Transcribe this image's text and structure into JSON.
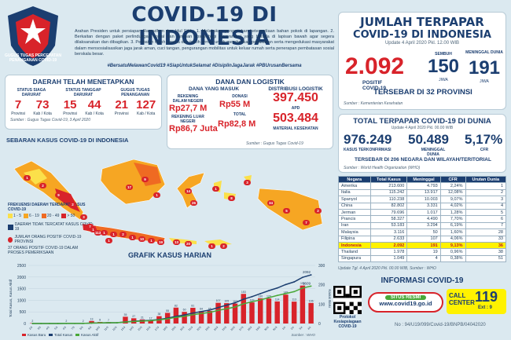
{
  "header": {
    "title": "COVID-19 DI INDONESIA",
    "logo_text": "GUGUS TUGAS PERCEPATAN PENANGANAN COVID-19",
    "intro": "Arahan Presiden untuk persiapan Ramadhan dan Idul Fitri : 1. Melakukan pengecekan ketersediaan bahan pokok di lapangan. 2. Berkaitan dengan paket perlindungan sosial dan jaminan sosial bagi masyarakat yang berada di lapisan bawah agar segera dilaksanakan dan dibagikan. 3. Pelibatan tokoh agama dan tokoh ormas untuk memberikan pendidikan serta mengedukasi masyarakat dalam mensosialisasikan jaga jarak aman, cuci tangan, pengurangan mobilitas untuk keluar rumah serta penerapan pembatasan sosial berskala besar.",
    "hashtags": "#BersatuMelawanCovid19 #SiapUntukSelamat #DisiplinJagaJarak #PBUrusanBersama"
  },
  "daerah": {
    "title": "DAERAH TELAH MENETAPKAN",
    "groups": [
      {
        "label": "STATUS SIAGA DARURAT",
        "prov": "7",
        "prov_unit": "Provinsi",
        "kab": "73",
        "kab_unit": "Kab / Kota"
      },
      {
        "label": "STATUS TANGGAP DARURAT",
        "prov": "15",
        "prov_unit": "Provinsi",
        "kab": "44",
        "kab_unit": "Kab / Kota"
      },
      {
        "label": "GUGUS TUGAS PENANGANAN",
        "prov": "21",
        "prov_unit": "Provinsi",
        "kab": "127",
        "kab_unit": "Kab / Kota"
      }
    ],
    "source": "Sumber : Gugus Tugas Covid-19, 3 April 2020"
  },
  "dana": {
    "title": "DANA DAN LOGISTIK",
    "masuk_title": "DANA YANG MASUK",
    "rek_dalam_label": "REKENING DALAM NEGERI",
    "rek_dalam_value": "Rp27,7 M",
    "donasi_label": "DONASI",
    "donasi_value": "Rp55 M",
    "rek_luar_label": "REKENING LUAR NEGERI",
    "rek_luar_value": "Rp86,7 Juta",
    "total_label": "TOTAL",
    "total_value": "Rp82,8 M",
    "distribusi_title": "DISTRIBUSI LOGISTIK",
    "apd_value": "397.450",
    "apd_label": "APD",
    "material_value": "503.484",
    "material_label": "MATERIAL KESEHATAN",
    "source": "Sumber : Gugus Tugas Covid-19"
  },
  "map": {
    "title": "SEBARAN KASUS COVID-19 DI INDONESIA",
    "legend_title": "FREKUENSI DAERAH TERDAPAT KASUS COVID-19",
    "legend_items": [
      {
        "label": "1 - 5",
        "color": "#fbe04a"
      },
      {
        "label": "6 - 19",
        "color": "#f6a623"
      },
      {
        "label": "20 - 49",
        "color": "#ef6a22"
      },
      {
        "label": "> 50",
        "color": "#d8232a"
      }
    ],
    "legend_no_case": "DAERAH TIDAK TERCATAT KASUS COVID-19",
    "legend_count": "JUMLAH ORANG POSITIF COVID-19 PROVINSI",
    "legend_pdp": "37 ORANG POSITIF COVID-19 DALAM PROSES PEMERIKSAAN",
    "count_labels": [
      "1",
      "2",
      "9",
      "2",
      "3",
      "1",
      "1",
      "1",
      "2",
      "1",
      "10",
      "1",
      "19",
      "17",
      "9",
      "1",
      "14",
      "26",
      "113",
      "1",
      "8",
      "34",
      "5",
      "7",
      "2",
      "13",
      "20",
      "1",
      "2",
      "3",
      "1",
      "7"
    ]
  },
  "chart_title": "GRAFIK KASUS HARIAN",
  "chart_data": {
    "type": "bar",
    "title": "GRAFIK KASUS HARIAN",
    "ylabel": "Total Kasus, Kasus Aktif",
    "y2label": "Kasus Baru",
    "dates": [
      "2/3",
      "3/3",
      "4/3",
      "5/3",
      "6/3",
      "7/3",
      "8/3",
      "9/3",
      "10/3",
      "11/3",
      "12/3",
      "13/3",
      "14/3",
      "15/3",
      "16/3",
      "17/3",
      "18/3",
      "19/3",
      "20/3",
      "21/3",
      "22/3",
      "23/3",
      "24/3",
      "25/3",
      "26/3",
      "27/3",
      "28/3",
      "29/3",
      "30/3",
      "31/3",
      "1/4",
      "2/4",
      "3/4",
      "4/4"
    ],
    "series": [
      {
        "name": "Kasus Baru",
        "type": "bar",
        "color": "#d8232a",
        "values": [
          2,
          0,
          0,
          0,
          2,
          0,
          2,
          13,
          8,
          7,
          0,
          35,
          27,
          21,
          17,
          38,
          55,
          82,
          60,
          81,
          64,
          65,
          107,
          105,
          103,
          153,
          109,
          130,
          129,
          114,
          149,
          113,
          196,
          106
        ]
      },
      {
        "name": "Total Kasus",
        "type": "line",
        "color": "#1b3e70",
        "values": [
          2,
          2,
          2,
          2,
          4,
          4,
          6,
          19,
          27,
          34,
          34,
          69,
          96,
          117,
          134,
          172,
          227,
          309,
          369,
          450,
          514,
          579,
          686,
          790,
          893,
          1046,
          1155,
          1285,
          1414,
          1528,
          1677,
          1790,
          1986,
          2092
        ]
      },
      {
        "name": "Kasus Aktif",
        "type": "line",
        "color": "#49a838",
        "values": [
          2,
          2,
          2,
          2,
          4,
          4,
          6,
          19,
          27,
          32,
          32,
          62,
          87,
          106,
          121,
          156,
          204,
          268,
          308,
          381,
          430,
          476,
          564,
          639,
          710,
          848,
          935,
          1015,
          1112,
          1207,
          1289,
          1372,
          1526,
          1609
        ]
      }
    ],
    "bar_labels": [
      "2",
      "2",
      "2",
      "13",
      "8",
      "7",
      "35",
      "27",
      "21",
      "17",
      "38",
      "55",
      "82",
      "60",
      "81",
      "64",
      "65",
      "107",
      "105",
      "103",
      "153",
      "109",
      "130",
      "129",
      "114",
      "149",
      "113",
      "196",
      "106"
    ],
    "line_end_labels": [
      "2092",
      "1609"
    ],
    "y_ticks": [
      "0",
      "500",
      "1000",
      "1500",
      "2000",
      "2500"
    ],
    "y2_ticks": [
      "0",
      "100",
      "200",
      "300"
    ],
    "ylim": [
      0,
      2500
    ],
    "y2lim": [
      0,
      300
    ],
    "legend": [
      "Kasus Baru",
      "Total Kasus",
      "Kasus Aktif"
    ],
    "legend_position": "bottom-left",
    "source": "Sumber : WHO"
  },
  "jumlah": {
    "title1": "JUMLAH TERPAPAR",
    "title2": "COVID-19 DI INDONESIA",
    "update": "Update 4 April 2020 Pkl. 12.00 WIB",
    "positif_value": "2.092",
    "positif_label": "POSITIF COVID-19",
    "sembuh_label": "SEMBUH",
    "sembuh_value": "150",
    "sembuh_unit": "JIWA",
    "meninggal_label": "MENINGGAL DUNIA",
    "meninggal_value": "191",
    "meninggal_unit": "JIWA",
    "tersebar": "TERSEBAR DI 32 PROVINSI",
    "source": "Sumber : Kementerian Kesehatan"
  },
  "dunia": {
    "title": "TOTAL TERPAPAR COVID-19 DI DUNIA",
    "update": "Update 4 April 2020 Pkl. 00.00 WIB",
    "kasus_value": "976.249",
    "kasus_label": "KASUS TERKONFIRMASI",
    "meninggal_value": "50.489",
    "meninggal_label": "MENINGGAL DUNIA",
    "cfr_value": "5,17%",
    "cfr_label": "CFR",
    "tersebar": "TERSEBAR DI 206 NEGARA DAN WILAYAH/TERITORIAL",
    "source": "Sumber : World Health Organization (WHO)"
  },
  "table": {
    "headers": [
      "Negara",
      "Total Kasus",
      "Meninggal",
      "CFR",
      "Urutan Dunia"
    ],
    "rows": [
      [
        "Amerika",
        "213.600",
        "4.793",
        "2,24%",
        "1"
      ],
      [
        "Italia",
        "115.242",
        "13.917",
        "12,08%",
        "2"
      ],
      [
        "Spanyol",
        "110.238",
        "10.003",
        "9,07%",
        "3"
      ],
      [
        "China",
        "82.802",
        "3.331",
        "4,02%",
        "4"
      ],
      [
        "Jerman",
        "79.696",
        "1.017",
        "1,28%",
        "5"
      ],
      [
        "Prancis",
        "58.327",
        "4.490",
        "7,70%",
        "6"
      ],
      [
        "Iran",
        "53.183",
        "3.294",
        "6,19%",
        "7"
      ],
      [
        "Malaysia",
        "3.116",
        "50",
        "1,60%",
        "28"
      ],
      [
        "Filipina",
        "2.633",
        "107",
        "4,06%",
        "33"
      ],
      [
        "Indonesia",
        "2.092",
        "191",
        "9,13%",
        "36"
      ],
      [
        "Thailand",
        "1.978",
        "19",
        "0,96%",
        "38"
      ],
      [
        "Singapura",
        "1.049",
        "4",
        "0,38%",
        "51"
      ]
    ],
    "highlight_row": 9,
    "update": "Update Tgl. 4 April 2020 Pkl. 00.00 WIB, Sumber : WHO"
  },
  "info": {
    "title": "INFORMASI COVID-19",
    "protokol": "Protokol Kesiapsiagaan COVID-19",
    "situs_label": "SITUS RESMI",
    "situs_url": "www.covid19.go.id",
    "call_label": "CALL CENTER",
    "call_number": "119",
    "call_ext": "Ext : 9",
    "doc_no": "No : 94/U19/099/Covid-19/BNPB/04042020"
  },
  "colors": {
    "navy": "#1b3e70",
    "red": "#d8232a",
    "green": "#49a838",
    "yellow": "#fff200",
    "bg": "#dbe9f0"
  }
}
